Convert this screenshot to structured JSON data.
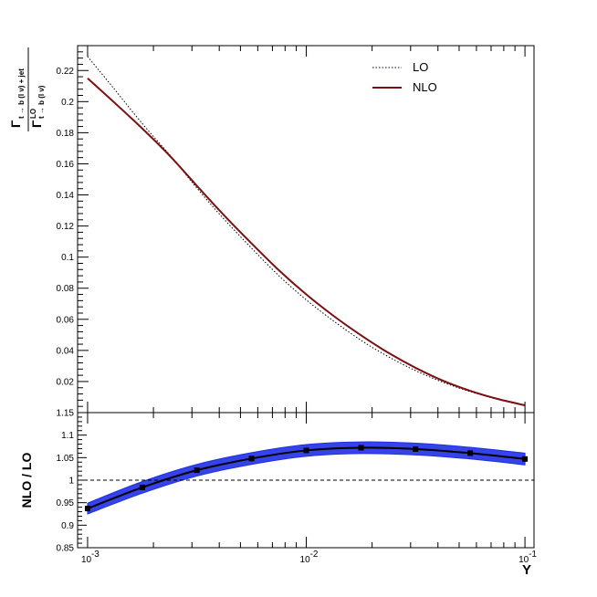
{
  "chart_data": [
    {
      "type": "line",
      "panel": "top",
      "x_scale": "log",
      "xlim": [
        0.0009,
        0.11
      ],
      "ylim": [
        0,
        0.236
      ],
      "ylabel_numerator": "Γ",
      "ylabel_numerator_sub": "t → b (l ν) + jet",
      "ylabel_denominator": "Γ",
      "ylabel_denominator_sup": "LO",
      "ylabel_denominator_sub": "t → b (l ν)",
      "y_ticks": [
        "0.02",
        "0.04",
        "0.06",
        "0.08",
        "0.1",
        "0.12",
        "0.14",
        "0.16",
        "0.18",
        "0.2",
        "0.22"
      ],
      "legend": {
        "placement": "top-right",
        "entries": [
          "LO",
          "NLO"
        ]
      },
      "series": [
        {
          "name": "LO",
          "style": "dotted",
          "color": "#000000",
          "x": [
            0.001,
            0.0013,
            0.0018,
            0.0024,
            0.0032,
            0.0042,
            0.0056,
            0.0075,
            0.01,
            0.0133,
            0.0178,
            0.0237,
            0.0316,
            0.0422,
            0.0562,
            0.075,
            0.1
          ],
          "y": [
            0.229,
            0.2095,
            0.185,
            0.165,
            0.1435,
            0.1245,
            0.106,
            0.088,
            0.0725,
            0.059,
            0.0465,
            0.036,
            0.027,
            0.0195,
            0.0135,
            0.0085,
            0.0045
          ]
        },
        {
          "name": "NLO",
          "style": "solid",
          "color": "#7b1010",
          "x": [
            0.001,
            0.0013,
            0.0018,
            0.0024,
            0.0032,
            0.0042,
            0.0056,
            0.0075,
            0.01,
            0.0133,
            0.0178,
            0.0237,
            0.0316,
            0.0422,
            0.0562,
            0.075,
            0.1
          ],
          "y": [
            0.215,
            0.2005,
            0.182,
            0.1645,
            0.145,
            0.127,
            0.109,
            0.0915,
            0.076,
            0.0623,
            0.0497,
            0.0385,
            0.0288,
            0.0205,
            0.014,
            0.0088,
            0.0047
          ]
        }
      ]
    },
    {
      "type": "line",
      "panel": "bottom",
      "x_scale": "log",
      "xlim": [
        0.0009,
        0.11
      ],
      "ylim": [
        0.85,
        1.15
      ],
      "xlabel": "Y",
      "ylabel": "NLO / LO",
      "x_ticks": [
        "10",
        "10",
        "10"
      ],
      "x_tick_exponents": [
        "-3",
        "-2",
        "-1"
      ],
      "y_ticks": [
        "0.85",
        "0.9",
        "0.95",
        "1",
        "1.05",
        "1.1",
        "1.15"
      ],
      "y_tick_top_label": "1.15",
      "reference_line": 1.0,
      "band_color": "#1f2fe6",
      "series": [
        {
          "name": "NLO / LO",
          "x": [
            0.001,
            0.00178,
            0.00316,
            0.00562,
            0.01,
            0.0178,
            0.0316,
            0.0562,
            0.1
          ],
          "y": [
            0.937,
            0.984,
            1.022,
            1.048,
            1.066,
            1.072,
            1.069,
            1.06,
            1.047
          ],
          "err": [
            0.012,
            0.013,
            0.013,
            0.013,
            0.013,
            0.013,
            0.013,
            0.013,
            0.013
          ]
        }
      ]
    }
  ]
}
